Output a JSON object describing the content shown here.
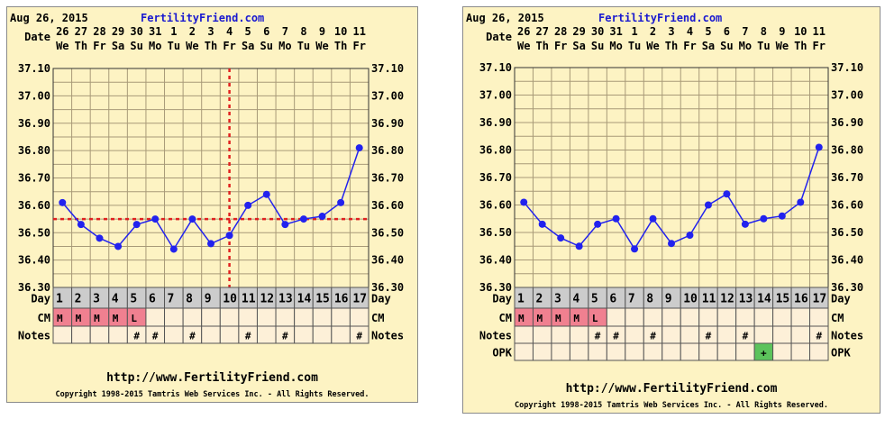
{
  "chart_data": [
    {
      "type": "line",
      "header_date": "Aug 26, 2015",
      "site": "FertilityFriend.com",
      "date_label": "Date",
      "dates": [
        "26",
        "27",
        "28",
        "29",
        "30",
        "31",
        "1",
        "2",
        "3",
        "4",
        "5",
        "6",
        "7",
        "8",
        "9",
        "10",
        "11"
      ],
      "weekdays": [
        "We",
        "Th",
        "Fr",
        "Sa",
        "Su",
        "Mo",
        "Tu",
        "We",
        "Th",
        "Fr",
        "Sa",
        "Su",
        "Mo",
        "Tu",
        "We",
        "Th",
        "Fr"
      ],
      "y_ticks": [
        "37.10",
        "37.00",
        "36.90",
        "36.80",
        "36.70",
        "36.60",
        "36.50",
        "36.40",
        "36.30"
      ],
      "ylim": [
        36.3,
        37.1
      ],
      "temps": [
        36.61,
        36.53,
        36.48,
        36.45,
        36.53,
        36.55,
        36.44,
        36.55,
        36.46,
        36.49,
        36.6,
        36.64,
        36.53,
        36.55,
        36.56,
        36.61,
        36.81
      ],
      "coverline": 36.55,
      "ovulation_day": 10,
      "day_label": "Day",
      "days": [
        "1",
        "2",
        "3",
        "4",
        "5",
        "6",
        "7",
        "8",
        "9",
        "10",
        "11",
        "12",
        "13",
        "14",
        "15",
        "16",
        "17"
      ],
      "cm_label": "CM",
      "cm": [
        "M",
        "M",
        "M",
        "M",
        "L",
        "",
        "",
        "",
        "",
        "",
        "",
        "",
        "",
        "",
        "",
        "",
        ""
      ],
      "notes_label": "Notes",
      "notes": [
        "",
        "",
        "",
        "",
        "#",
        "#",
        "",
        "#",
        "",
        "",
        "#",
        "",
        "#",
        "",
        "",
        "",
        "#"
      ],
      "url": "http://www.FertilityFriend.com",
      "copyright": "Copyright 1998-2015 Tamtris Web Services Inc. - All Rights Reserved."
    },
    {
      "type": "line",
      "header_date": "Aug 26, 2015",
      "site": "FertilityFriend.com",
      "date_label": "Date",
      "dates": [
        "26",
        "27",
        "28",
        "29",
        "30",
        "31",
        "1",
        "2",
        "3",
        "4",
        "5",
        "6",
        "7",
        "8",
        "9",
        "10",
        "11"
      ],
      "weekdays": [
        "We",
        "Th",
        "Fr",
        "Sa",
        "Su",
        "Mo",
        "Tu",
        "We",
        "Th",
        "Fr",
        "Sa",
        "Su",
        "Mo",
        "Tu",
        "We",
        "Th",
        "Fr"
      ],
      "y_ticks": [
        "37.10",
        "37.00",
        "36.90",
        "36.80",
        "36.70",
        "36.60",
        "36.50",
        "36.40",
        "36.30"
      ],
      "ylim": [
        36.3,
        37.1
      ],
      "temps": [
        36.61,
        36.53,
        36.48,
        36.45,
        36.53,
        36.55,
        36.44,
        36.55,
        36.46,
        36.49,
        36.6,
        36.64,
        36.53,
        36.55,
        36.56,
        36.61,
        36.81
      ],
      "day_label": "Day",
      "days": [
        "1",
        "2",
        "3",
        "4",
        "5",
        "6",
        "7",
        "8",
        "9",
        "10",
        "11",
        "12",
        "13",
        "14",
        "15",
        "16",
        "17"
      ],
      "cm_label": "CM",
      "cm": [
        "M",
        "M",
        "M",
        "M",
        "L",
        "",
        "",
        "",
        "",
        "",
        "",
        "",
        "",
        "",
        "",
        "",
        ""
      ],
      "notes_label": "Notes",
      "notes": [
        "",
        "",
        "",
        "",
        "#",
        "#",
        "",
        "#",
        "",
        "",
        "#",
        "",
        "#",
        "",
        "",
        "",
        "#"
      ],
      "opk_label": "OPK",
      "opk": [
        "",
        "",
        "",
        "",
        "",
        "",
        "",
        "",
        "",
        "",
        "",
        "",
        "",
        "+",
        "",
        "",
        ""
      ],
      "url": "http://www.FertilityFriend.com",
      "copyright": "Copyright 1998-2015 Tamtris Web Services Inc. - All Rights Reserved."
    }
  ],
  "colors": {
    "bg": "#fdf3c3",
    "grid": "#a89a78",
    "line": "#2222ee",
    "cover": "#e02020",
    "day_row": "#cccccc",
    "cm_fill": "#f08090",
    "opk_fill": "#5cc35c",
    "cell": "#fdf0d8",
    "site": "#1a1ad0"
  }
}
